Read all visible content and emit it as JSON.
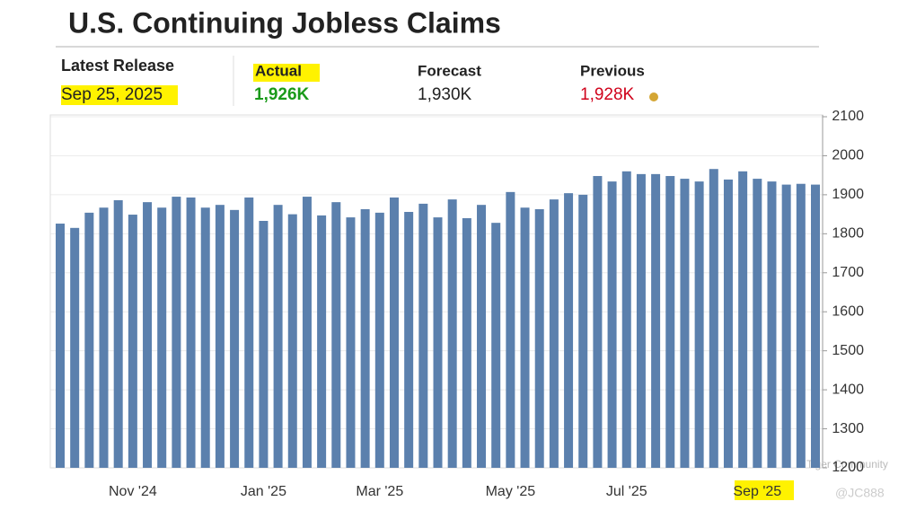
{
  "header": {
    "title": "U.S. Continuing Jobless Claims",
    "latest_release_label": "Latest Release",
    "latest_release_date": "Sep 25, 2025",
    "actual_label": "Actual",
    "actual_value": "1,926K",
    "forecast_label": "Forecast",
    "forecast_value": "1,930K",
    "previous_label": "Previous",
    "previous_value": "1,928K"
  },
  "watermark": {
    "brand": "Tiger Community",
    "handle": "@JC888"
  },
  "chart_data": {
    "type": "bar",
    "color": "#5b80ad",
    "grid": true,
    "categories": [
      null,
      null,
      null,
      null,
      null,
      "Nov '24",
      null,
      null,
      null,
      null,
      null,
      null,
      null,
      null,
      "Jan '25",
      null,
      null,
      null,
      null,
      null,
      null,
      null,
      "Mar '25",
      null,
      null,
      null,
      null,
      null,
      null,
      null,
      null,
      "May '25",
      null,
      null,
      null,
      null,
      null,
      null,
      null,
      "Jul '25",
      null,
      null,
      null,
      null,
      null,
      null,
      null,
      null,
      "Sep '25",
      null,
      null,
      null,
      null
    ],
    "values": [
      1826,
      1815,
      1854,
      1867,
      1886,
      1849,
      1881,
      1867,
      1895,
      1893,
      1867,
      1874,
      1861,
      1893,
      1833,
      1874,
      1850,
      1895,
      1847,
      1881,
      1842,
      1863,
      1854,
      1893,
      1856,
      1877,
      1842,
      1888,
      1840,
      1874,
      1828,
      1907,
      1867,
      1863,
      1888,
      1904,
      1900,
      1948,
      1934,
      1960,
      1953,
      1953,
      1948,
      1941,
      1934,
      1966,
      1939,
      1960,
      1941,
      1934,
      1926,
      1928,
      1926
    ],
    "ylim": [
      1200,
      2100
    ],
    "yticks": [
      1200,
      1300,
      1400,
      1500,
      1600,
      1700,
      1800,
      1900,
      2000,
      2100
    ]
  }
}
